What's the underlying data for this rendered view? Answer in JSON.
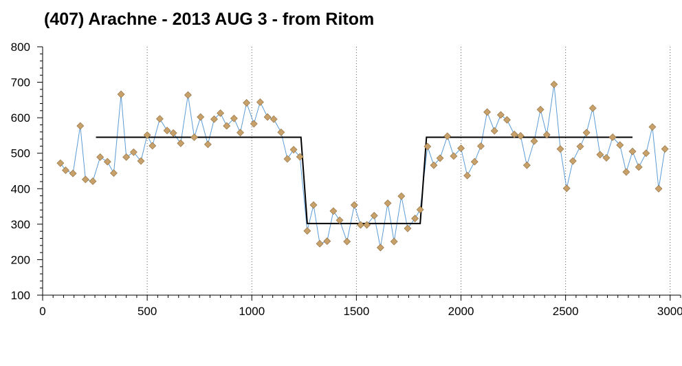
{
  "chart_data": {
    "type": "line",
    "title": "(407) Arachne - 2013 AUG 3 - from Ritom",
    "xlabel": "",
    "ylabel": "",
    "xlim": [
      0,
      3050
    ],
    "ylim": [
      100,
      800
    ],
    "x_ticks": [
      0,
      500,
      1000,
      1500,
      2000,
      2500,
      3000
    ],
    "y_ticks": [
      100,
      200,
      300,
      400,
      500,
      600,
      700,
      800
    ],
    "x_gridlines": [
      500,
      1000,
      1500,
      2000,
      2500,
      3000
    ],
    "grid": "vertical dotted",
    "legend": "none",
    "colors": {
      "observed_line": "#5b9bd5",
      "observed_marker_fill": "#c8a06a",
      "observed_marker_stroke": "#8a6a3a",
      "model": "#000000",
      "axis": "#000000",
      "grid": "#555555"
    },
    "series": [
      {
        "kind": "observed",
        "points": [
          [
            85,
            472
          ],
          [
            110,
            452
          ],
          [
            145,
            443
          ],
          [
            180,
            577
          ],
          [
            205,
            426
          ],
          [
            240,
            421
          ],
          [
            275,
            489
          ],
          [
            310,
            476
          ],
          [
            340,
            444
          ],
          [
            375,
            666
          ],
          [
            400,
            489
          ],
          [
            435,
            503
          ],
          [
            470,
            478
          ],
          [
            500,
            551
          ],
          [
            525,
            521
          ],
          [
            560,
            597
          ],
          [
            595,
            564
          ],
          [
            625,
            557
          ],
          [
            660,
            528
          ],
          [
            695,
            664
          ],
          [
            725,
            545
          ],
          [
            755,
            602
          ],
          [
            790,
            525
          ],
          [
            820,
            596
          ],
          [
            850,
            613
          ],
          [
            880,
            577
          ],
          [
            915,
            598
          ],
          [
            945,
            558
          ],
          [
            975,
            642
          ],
          [
            1010,
            583
          ],
          [
            1040,
            644
          ],
          [
            1075,
            602
          ],
          [
            1105,
            596
          ],
          [
            1140,
            559
          ],
          [
            1170,
            484
          ],
          [
            1200,
            510
          ],
          [
            1230,
            490
          ],
          [
            1265,
            281
          ],
          [
            1295,
            354
          ],
          [
            1325,
            245
          ],
          [
            1360,
            252
          ],
          [
            1390,
            337
          ],
          [
            1420,
            311
          ],
          [
            1455,
            251
          ],
          [
            1490,
            354
          ],
          [
            1520,
            298
          ],
          [
            1550,
            298
          ],
          [
            1585,
            324
          ],
          [
            1615,
            234
          ],
          [
            1650,
            359
          ],
          [
            1680,
            251
          ],
          [
            1715,
            379
          ],
          [
            1745,
            288
          ],
          [
            1780,
            316
          ],
          [
            1805,
            341
          ],
          [
            1840,
            519
          ],
          [
            1870,
            466
          ],
          [
            1900,
            486
          ],
          [
            1935,
            548
          ],
          [
            1965,
            492
          ],
          [
            2000,
            514
          ],
          [
            2030,
            437
          ],
          [
            2065,
            476
          ],
          [
            2095,
            520
          ],
          [
            2125,
            616
          ],
          [
            2160,
            563
          ],
          [
            2190,
            608
          ],
          [
            2220,
            594
          ],
          [
            2255,
            553
          ],
          [
            2285,
            549
          ],
          [
            2315,
            466
          ],
          [
            2350,
            534
          ],
          [
            2380,
            623
          ],
          [
            2410,
            552
          ],
          [
            2445,
            694
          ],
          [
            2475,
            512
          ],
          [
            2505,
            401
          ],
          [
            2535,
            478
          ],
          [
            2570,
            519
          ],
          [
            2600,
            558
          ],
          [
            2630,
            627
          ],
          [
            2665,
            496
          ],
          [
            2695,
            487
          ],
          [
            2725,
            545
          ],
          [
            2760,
            523
          ],
          [
            2790,
            447
          ],
          [
            2820,
            505
          ],
          [
            2850,
            461
          ],
          [
            2885,
            500
          ],
          [
            2915,
            574
          ],
          [
            2945,
            400
          ],
          [
            2975,
            512
          ]
        ]
      },
      {
        "kind": "model",
        "points": [
          [
            255,
            545
          ],
          [
            1235,
            545
          ],
          [
            1265,
            302
          ],
          [
            1805,
            302
          ],
          [
            1835,
            545
          ],
          [
            2820,
            545
          ]
        ]
      }
    ]
  }
}
